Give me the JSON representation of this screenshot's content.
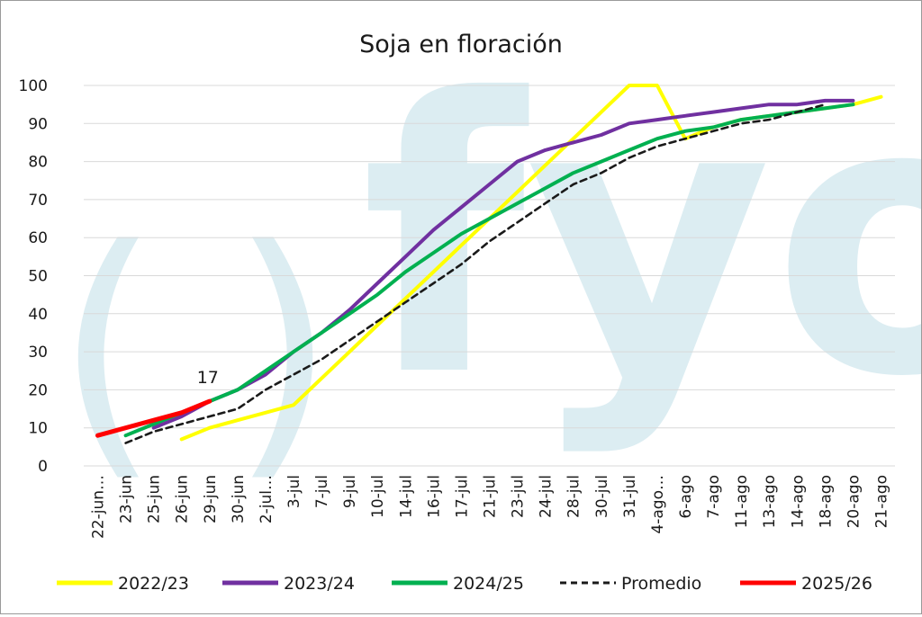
{
  "chart_data": {
    "type": "line",
    "title": "Soja en floración",
    "xlabel": "",
    "ylabel": "",
    "ylim": [
      0,
      100
    ],
    "yticks": [
      0,
      10,
      20,
      30,
      40,
      50,
      60,
      70,
      80,
      90,
      100
    ],
    "grid": true,
    "legend_position": "bottom",
    "watermark": "(fyo",
    "categories": [
      "22-jun…",
      "23-jun",
      "25-jun",
      "26-jun",
      "29-jun",
      "30-jun",
      "2-jul…",
      "3-jul",
      "7-jul",
      "9-jul",
      "10-jul",
      "14-jul",
      "16-jul",
      "17-jul",
      "21-jul",
      "23-jul",
      "24-jul",
      "28-jul",
      "30-jul",
      "31-jul",
      "4-ago…",
      "6-ago",
      "7-ago",
      "11-ago",
      "13-ago",
      "14-ago",
      "18-ago",
      "20-ago",
      "21-ago"
    ],
    "series": [
      {
        "name": "2022/23",
        "color": "#ffff00",
        "width": 4,
        "dashed": false,
        "values": [
          null,
          null,
          null,
          7,
          10,
          12,
          14,
          16,
          23,
          30,
          37,
          44,
          51,
          58,
          65,
          72,
          79,
          86,
          93,
          100,
          107,
          86,
          89,
          91,
          92,
          93,
          94,
          95,
          97
        ]
      },
      {
        "name": "2023/24",
        "color": "#7030a0",
        "width": 4,
        "dashed": false,
        "values": [
          null,
          null,
          10,
          13,
          17,
          20,
          24,
          30,
          35,
          41,
          48,
          55,
          62,
          68,
          74,
          80,
          83,
          85,
          87,
          90,
          91,
          92,
          93,
          94,
          95,
          95,
          96,
          96,
          null
        ]
      },
      {
        "name": "2024/25",
        "color": "#00b050",
        "width": 4,
        "dashed": false,
        "values": [
          null,
          8,
          11,
          14,
          17,
          20,
          25,
          30,
          35,
          40,
          45,
          51,
          56,
          61,
          65,
          69,
          73,
          77,
          80,
          83,
          86,
          88,
          89,
          91,
          92,
          93,
          94,
          95,
          null
        ]
      },
      {
        "name": "Promedio",
        "color": "#1a1a1a",
        "width": 2.6,
        "dashed": true,
        "values": [
          null,
          6,
          9,
          11,
          13,
          15,
          20,
          24,
          28,
          33,
          38,
          43,
          48,
          53,
          59,
          64,
          69,
          74,
          77,
          81,
          84,
          86,
          88,
          90,
          91,
          93,
          95,
          null,
          null
        ]
      },
      {
        "name": "2025/26",
        "color": "#ff0000",
        "width": 5,
        "dashed": false,
        "values": [
          8,
          10,
          12,
          14,
          17,
          null,
          null,
          null,
          null,
          null,
          null,
          null,
          null,
          null,
          null,
          null,
          null,
          null,
          null,
          null,
          null,
          null,
          null,
          null,
          null,
          null,
          null,
          null,
          null
        ]
      }
    ],
    "annotations": [
      {
        "text": "17",
        "series": "2025/26",
        "category": "29-jun"
      }
    ]
  }
}
